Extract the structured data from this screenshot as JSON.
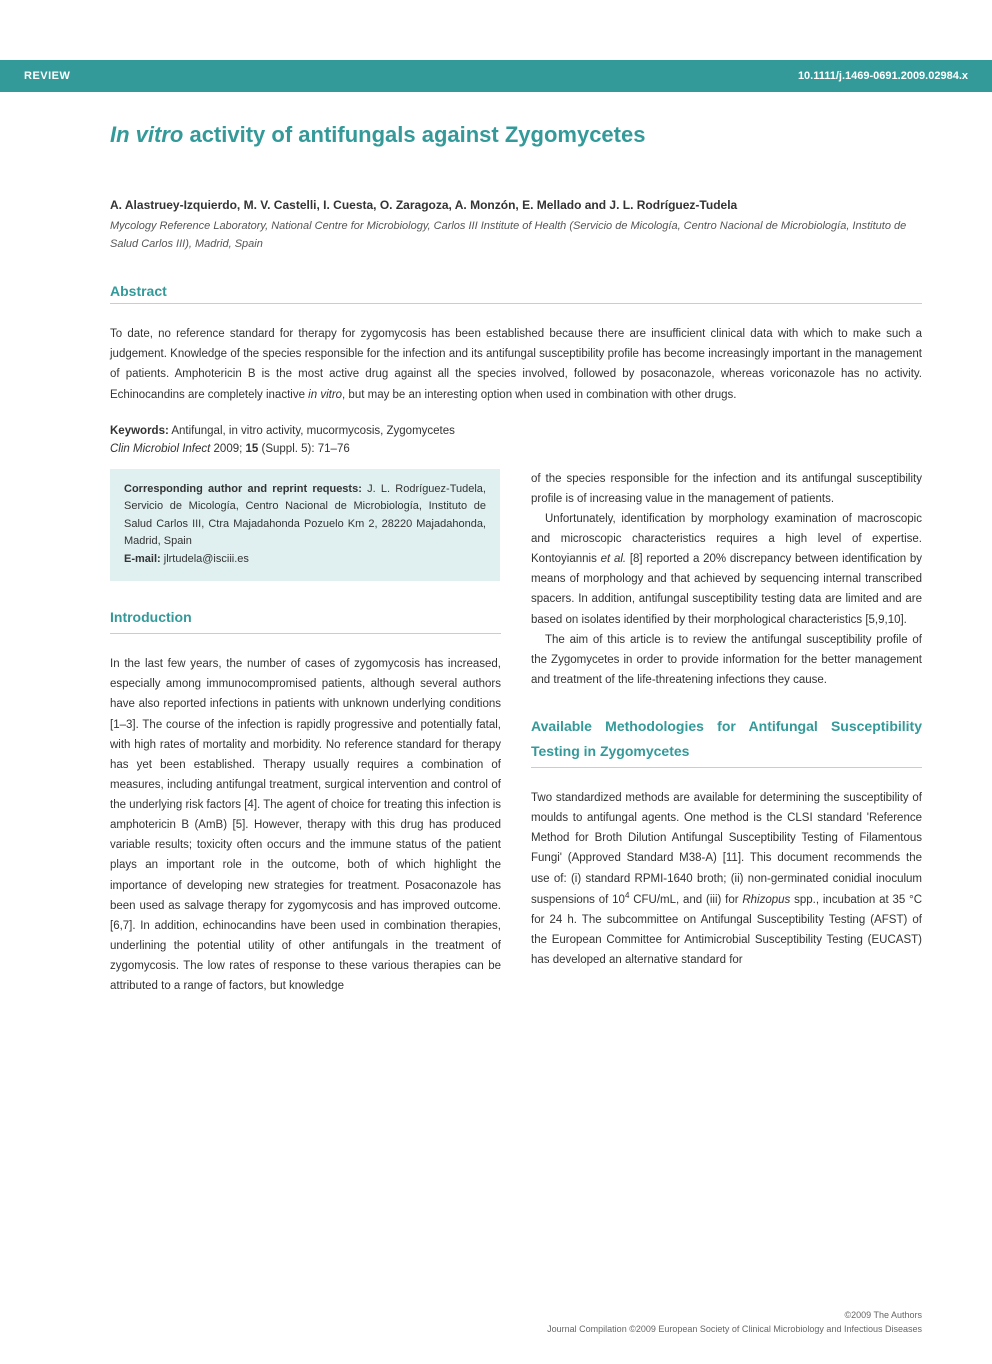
{
  "colors": {
    "teal": "#339999",
    "box_bg": "#e0f0f0",
    "rule": "#cccccc",
    "text": "#333333",
    "text_muted": "#555555",
    "footer": "#666666",
    "white": "#ffffff"
  },
  "header": {
    "left": "REVIEW",
    "right": "10.1111/j.1469-0691.2009.02984.x"
  },
  "title_italic": "In vitro",
  "title_rest": " activity of antifungals against Zygomycetes",
  "authors": "A. Alastruey-Izquierdo, M. V. Castelli, I. Cuesta, O. Zaragoza, A. Monzón, E. Mellado and J. L. Rodríguez-Tudela",
  "affiliation": "Mycology Reference Laboratory, National Centre for Microbiology, Carlos III Institute of Health (Servicio de Micología, Centro Nacional de Microbiología, Instituto de Salud Carlos III), Madrid, Spain",
  "abstract_heading": "Abstract",
  "abstract_p1": "To date, no reference standard for therapy for zygomycosis has been established because there are insufficient clinical data with which to make such a judgement. Knowledge of the species responsible for the infection and its antifungal susceptibility profile has become increasingly important in the management of patients. Amphotericin B is the most active drug against all the species involved, followed by posaconazole, whereas voriconazole has no activity. Echinocandins are completely inactive ",
  "abstract_italic": "in vitro",
  "abstract_p2": ", but may be an interesting option when used in combination with other drugs.",
  "keywords_label": "Keywords:",
  "keywords": " Antifungal, in vitro activity, mucormycosis, Zygomycetes",
  "citation_journal": "Clin Microbiol Infect",
  "citation_rest1": " 2009; ",
  "citation_vol": "15",
  "citation_rest2": " (Suppl. 5): 71–76",
  "corr_label": "Corresponding author and reprint requests:",
  "corr_text": " J. L. Rodríguez-Tudela, Servicio de Micología, Centro Nacional de Microbiología, Instituto de Salud Carlos III, Ctra Majadahonda Pozuelo Km 2, 28220 Majadahonda, Madrid, Spain",
  "corr_email_label": "E-mail:",
  "corr_email": " jlrtudela@isciii.es",
  "intro_heading": "Introduction",
  "intro_text": "In the last few years, the number of cases of zygomycosis has increased, especially among immunocompromised patients, although several authors have also reported infections in patients with unknown underlying conditions [1–3]. The course of the infection is rapidly progressive and potentially fatal, with high rates of mortality and morbidity. No reference standard for therapy has yet been established. Therapy usually requires a combination of measures, including antifungal treatment, surgical intervention and control of the underlying risk factors [4]. The agent of choice for treating this infection is amphotericin B (AmB) [5]. However, therapy with this drug has produced variable results; toxicity often occurs and the immune status of the patient plays an important role in the outcome, both of which highlight the importance of developing new strategies for treatment. Posaconazole has been used as salvage therapy for zygomycosis and has improved outcome. [6,7]. In addition, echinocandins have been used in combination therapies, underlining the potential utility of other antifungals in the treatment of zygomycosis. The low rates of response to these various therapies can be attributed to a range of factors, but knowledge",
  "rcol_p1": "of the species responsible for the infection and its antifungal susceptibility profile is of increasing value in the management of patients.",
  "rcol_p2a": "Unfortunately, identification by morphology examination of macroscopic and microscopic characteristics requires a high level of expertise. Kontoyiannis ",
  "rcol_p2_italic": "et al.",
  "rcol_p2b": " [8] reported a 20% discrepancy between identification by means of morphology and that achieved by sequencing internal transcribed spacers. In addition, antifungal susceptibility testing data are limited and are based on isolates identified by their morphological characteristics [5,9,10].",
  "rcol_p3": "The aim of this article is to review the antifungal susceptibility profile of the Zygomycetes in order to provide information for the better management and treatment of the life-threatening infections they cause.",
  "methods_heading": "Available Methodologies for Antifungal Susceptibility Testing in Zygomycetes",
  "methods_p1a": "Two standardized methods are available for determining the susceptibility of moulds to antifungal agents. One method is the CLSI standard 'Reference Method for Broth Dilution Antifungal Susceptibility Testing of Filamentous Fungi' (Approved Standard M38-A) [11]. This document recommends the use of: (i) standard RPMI-1640 broth; (ii) non-germinated conidial inoculum suspensions of 10",
  "methods_sup": "4",
  "methods_p1b": " CFU/mL, and (iii) for ",
  "methods_italic": "Rhizopus",
  "methods_p1c": " spp., incubation at 35 °C for 24 h. The subcommittee on Antifungal Susceptibility Testing (AFST) of the European Committee for Antimicrobial Susceptibility Testing (EUCAST) has developed an alternative standard for",
  "footer_l1": "©2009 The Authors",
  "footer_l2": "Journal Compilation ©2009 European Society of Clinical Microbiology and Infectious Diseases"
}
